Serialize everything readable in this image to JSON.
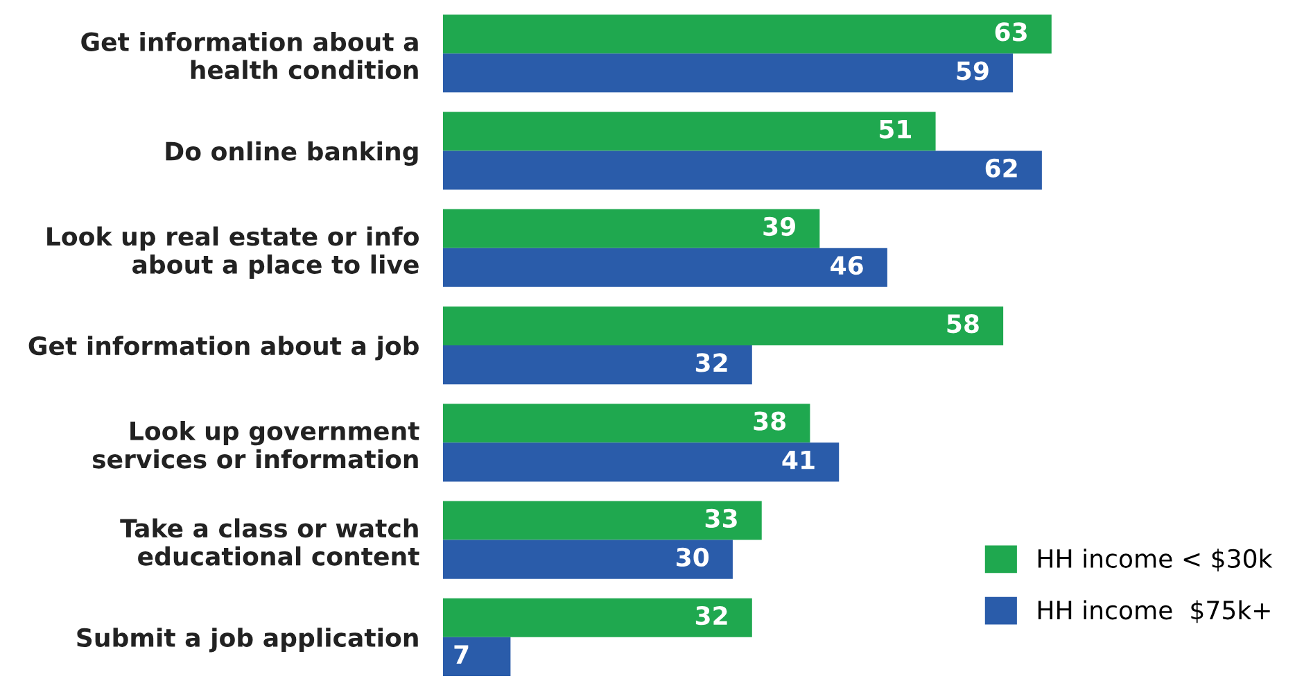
{
  "chart_data": {
    "type": "bar",
    "orientation": "horizontal",
    "data_labels": true,
    "legend": "bottom right",
    "grid": false,
    "categories": [
      "Get information about a\nhealth condition",
      "Do online banking",
      "Look up real estate or info\nabout a place to live",
      "Get information about a job",
      "Look up government\nservices or information",
      "Take a class or watch\neducational content",
      "Submit a job application"
    ],
    "series": [
      {
        "name": "HH income < $30k",
        "color": "#1fa84f",
        "values": [
          63,
          51,
          39,
          58,
          38,
          33,
          32
        ]
      },
      {
        "name": "HH income  $75k+",
        "color": "#2a5caa",
        "values": [
          59,
          62,
          46,
          32,
          41,
          30,
          7
        ]
      }
    ]
  }
}
